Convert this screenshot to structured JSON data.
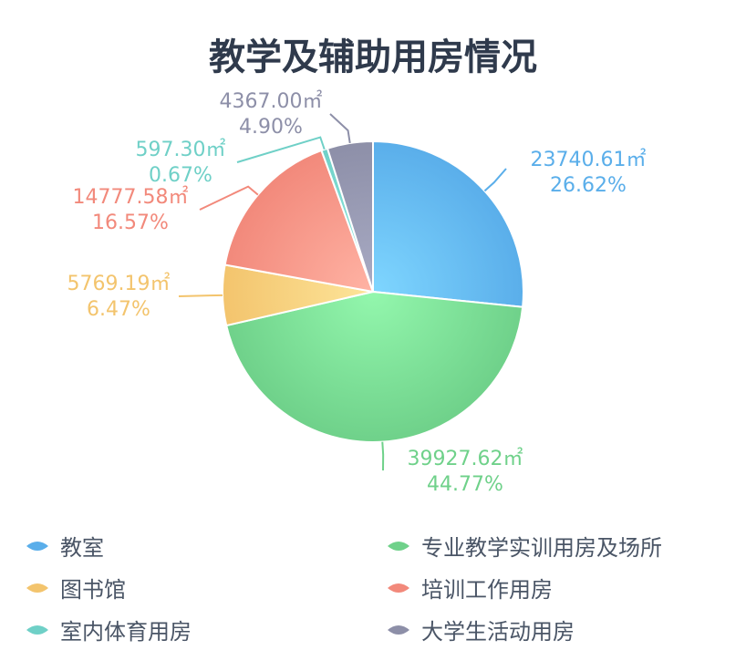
{
  "chart_data": {
    "type": "pie",
    "title": "教学及辅助用房情况",
    "slices": [
      {
        "name": "教室",
        "value_label": "23740.61㎡",
        "percent_label": "26.62%",
        "value": 23740.61,
        "percent": 26.62,
        "color": "#5aaeea",
        "color_light": "#7fd6ff"
      },
      {
        "name": "专业教学实训用房及场所",
        "value_label": "39927.62㎡",
        "percent_label": "44.77%",
        "value": 39927.62,
        "percent": 44.77,
        "color": "#6fd18a",
        "color_light": "#93f7ad"
      },
      {
        "name": "图书馆",
        "value_label": "5769.19㎡",
        "percent_label": "6.47%",
        "value": 5769.19,
        "percent": 6.47,
        "color": "#f3c46d",
        "color_light": "#fde59a"
      },
      {
        "name": "培训工作用房",
        "value_label": "14777.58㎡",
        "percent_label": "16.57%",
        "value": 14777.58,
        "percent": 16.57,
        "color": "#f2897b",
        "color_light": "#ffb3a4"
      },
      {
        "name": "室内体育用房",
        "value_label": "597.30㎡",
        "percent_label": "0.67%",
        "value": 597.3,
        "percent": 0.67,
        "color": "#6fd0c7",
        "color_light": "#9aeee5"
      },
      {
        "name": "大学生活动用房",
        "value_label": "4367.00㎡",
        "percent_label": "4.90%",
        "value": 4367.0,
        "percent": 4.9,
        "color": "#8d8fa8",
        "color_light": "#a9abc4"
      }
    ],
    "legend_position": "bottom"
  }
}
